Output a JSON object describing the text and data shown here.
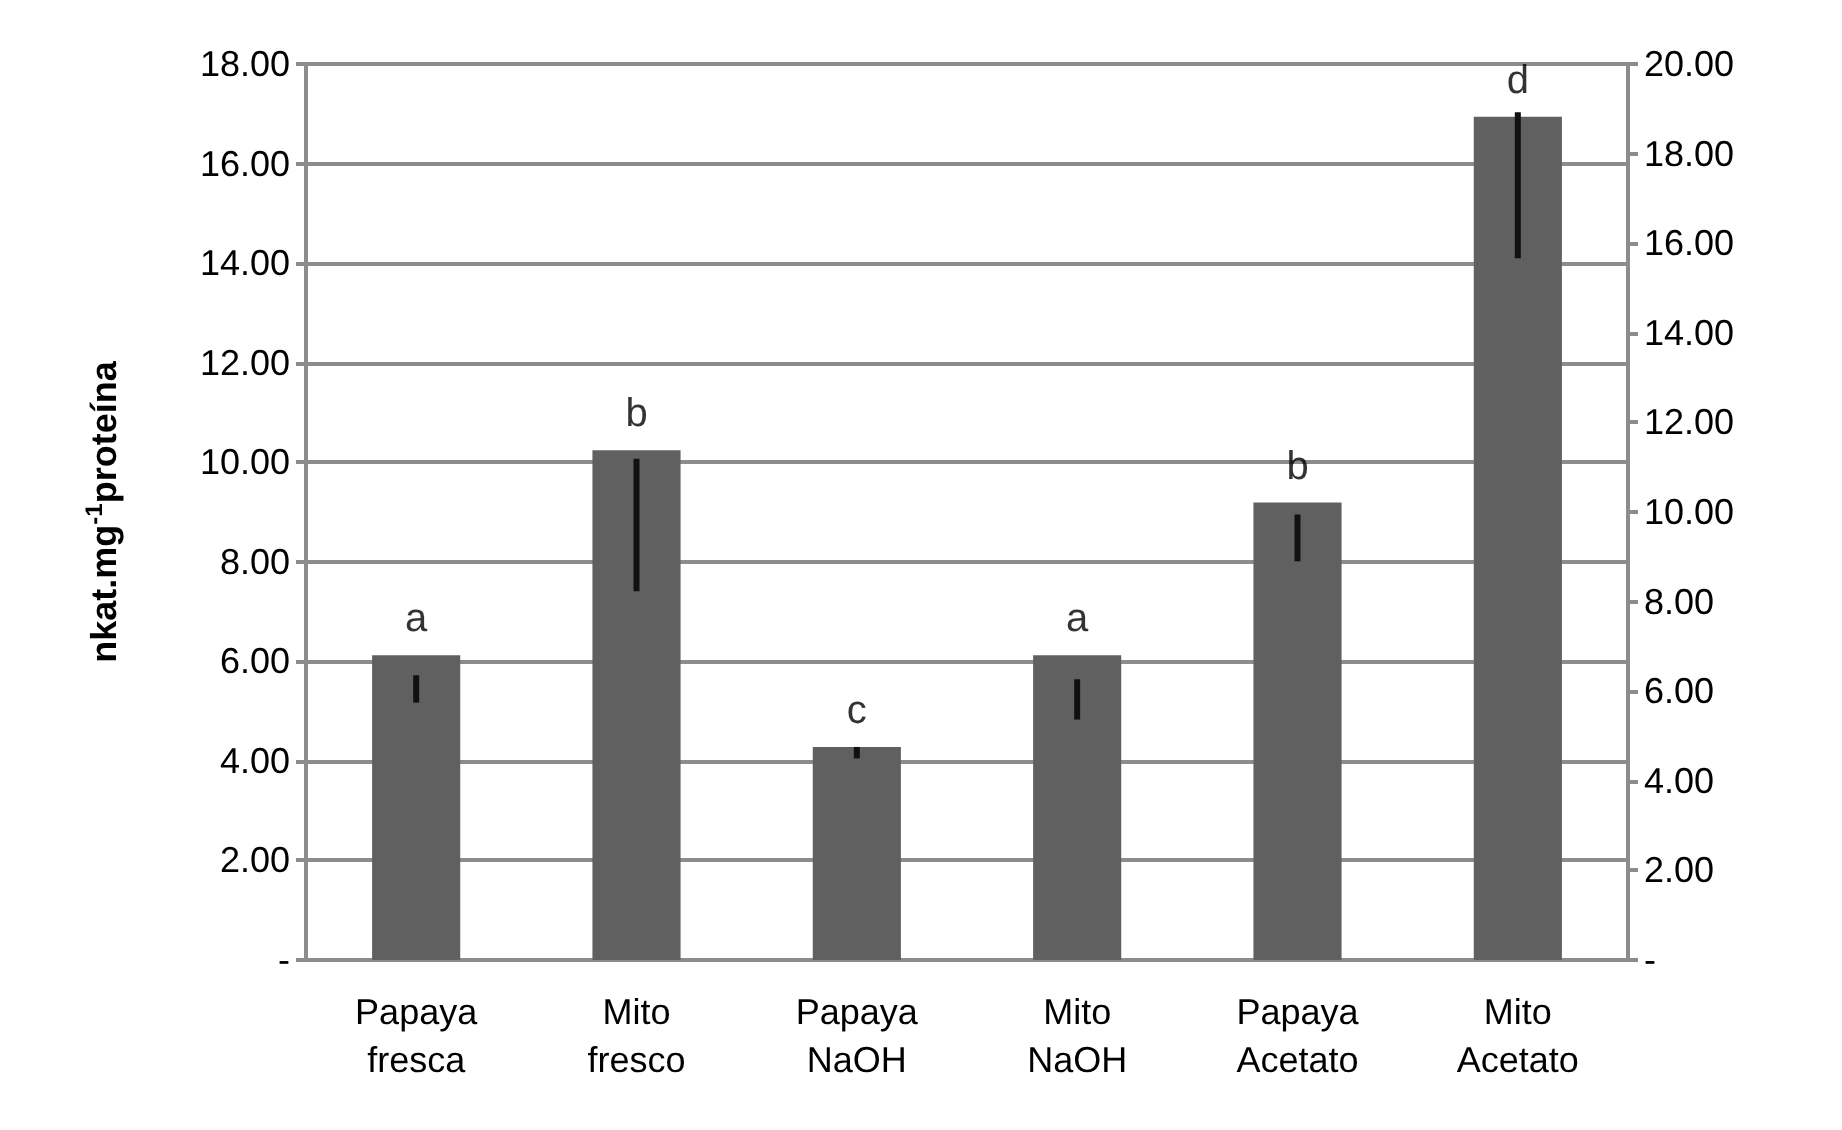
{
  "chart_data": {
    "type": "bar",
    "ylabel": "nkat.mg$^{-1}$proteína",
    "categories": [
      "Papaya\nfresca",
      "Mito\nfresco",
      "Papaya\nNaOH",
      "Mito\nNaOH",
      "Papaya\nAcetato",
      "Mito\nAcetato"
    ],
    "values": [
      6.12,
      10.24,
      4.28,
      6.12,
      9.19,
      16.94
    ],
    "errors": [
      [
        5.17,
        5.72
      ],
      [
        7.41,
        10.07
      ],
      [
        4.05,
        4.28
      ],
      [
        4.83,
        5.64
      ],
      [
        8.01,
        8.95
      ],
      [
        14.1,
        17.03
      ]
    ],
    "color": "#606060",
    "ylim": [
      0,
      18
    ],
    "yticks": [
      {
        "value": 0,
        "label": "-"
      },
      {
        "value": 2,
        "label": "2.00"
      },
      {
        "value": 4,
        "label": "4.00"
      },
      {
        "value": 6,
        "label": "6.00"
      },
      {
        "value": 8,
        "label": "8.00"
      },
      {
        "value": 10,
        "label": "10.00"
      },
      {
        "value": 12,
        "label": "12.00"
      },
      {
        "value": 14,
        "label": "14.00"
      },
      {
        "value": 16,
        "label": "16.00"
      },
      {
        "value": 18,
        "label": "18.00"
      }
    ],
    "y2lim": [
      0,
      20
    ],
    "y2ticks": [
      {
        "value": 0,
        "label": "-"
      },
      {
        "value": 2,
        "label": "2.00"
      },
      {
        "value": 4,
        "label": "4.00"
      },
      {
        "value": 6,
        "label": "6.00"
      },
      {
        "value": 8,
        "label": "8.00"
      },
      {
        "value": 10,
        "label": "10.00"
      },
      {
        "value": 12,
        "label": "12.00"
      },
      {
        "value": 14,
        "label": "14.00"
      },
      {
        "value": 16,
        "label": "16.00"
      },
      {
        "value": 18,
        "label": "18.00"
      },
      {
        "value": 20,
        "label": "20.00"
      }
    ],
    "annotations": [
      {
        "text": "a",
        "x": "Papaya\nfresca",
        "y": 6.12
      },
      {
        "text": "b",
        "x": "Mito\nfresco",
        "y": 10.24
      },
      {
        "text": "c",
        "x": "Papaya\nNaOH",
        "y": 4.28
      },
      {
        "text": "a",
        "x": "Mito\nNaOH",
        "y": 6.12
      },
      {
        "text": "b",
        "x": "Papaya\nAcetato",
        "y": 9.19
      },
      {
        "text": "d",
        "x": "Mito\nAcetato",
        "y": 16.94
      }
    ],
    "grid": "y",
    "legend": false
  }
}
